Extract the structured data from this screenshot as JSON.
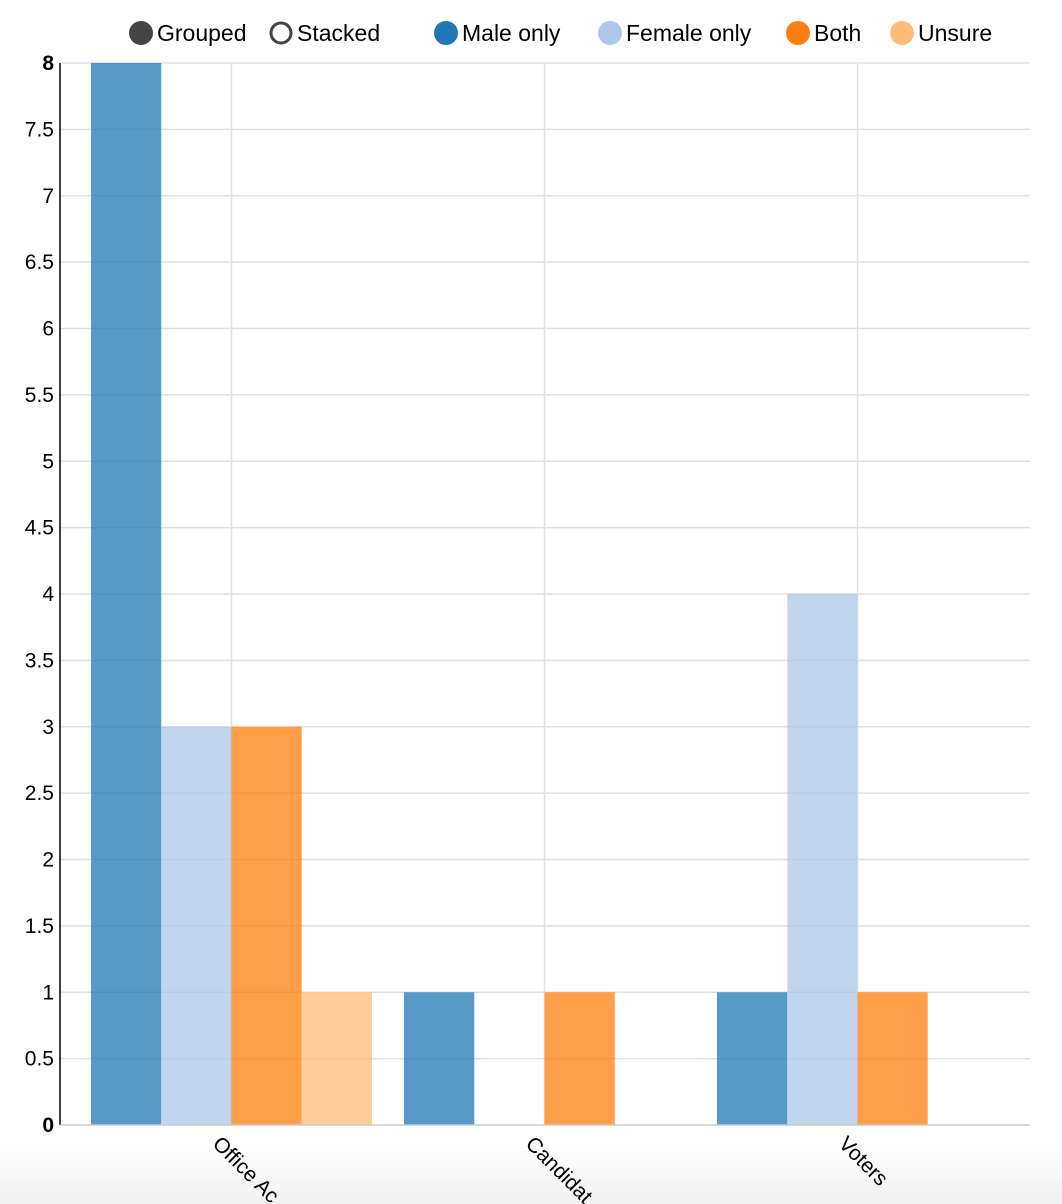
{
  "controls": {
    "modes": [
      {
        "label": "Grouped",
        "selected": true
      },
      {
        "label": "Stacked",
        "selected": false
      }
    ]
  },
  "chart_data": {
    "type": "bar",
    "mode": "grouped",
    "categories": [
      "Office Ac",
      "Candidat",
      "Voters"
    ],
    "series": [
      {
        "name": "Male only",
        "color": "#1f77b4",
        "values": [
          8,
          1,
          1
        ]
      },
      {
        "name": "Female only",
        "color": "#aec7e8",
        "values": [
          3,
          0,
          4
        ]
      },
      {
        "name": "Both",
        "color": "#ff7f0e",
        "values": [
          3,
          1,
          1
        ]
      },
      {
        "name": "Unsure",
        "color": "#ffbb78",
        "values": [
          1,
          0,
          0
        ]
      }
    ],
    "ylim": [
      0,
      8
    ],
    "yticks": [
      "0",
      "0.5",
      "1",
      "1.5",
      "2",
      "2.5",
      "3",
      "3.5",
      "4",
      "4.5",
      "5",
      "5.5",
      "6",
      "6.5",
      "7",
      "7.5",
      "8"
    ],
    "grid": true,
    "legend_position": "top"
  }
}
